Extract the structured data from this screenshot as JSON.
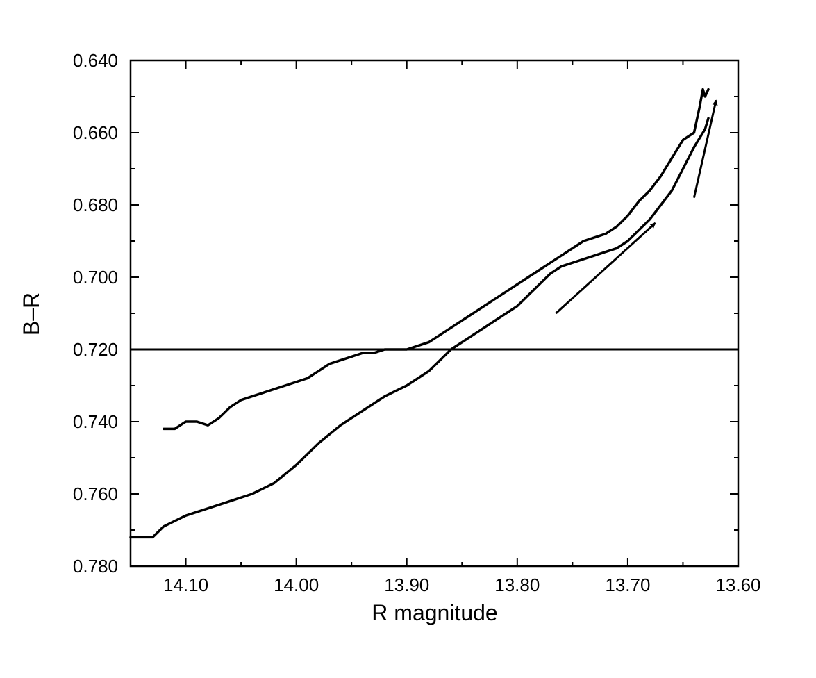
{
  "chart_data": {
    "type": "line",
    "title": "",
    "xlabel": "R magnitude",
    "ylabel": "B–R",
    "xlim": [
      14.15,
      13.6
    ],
    "ylim": [
      0.64,
      0.78
    ],
    "x_reversed": true,
    "y_reversed": true,
    "grid": false,
    "legend": "none",
    "x_ticks": [
      14.1,
      14.0,
      13.9,
      13.8,
      13.7,
      13.6
    ],
    "x_tick_labels": [
      "14.10",
      "14.00",
      "13.90",
      "13.80",
      "13.70",
      "13.60"
    ],
    "y_ticks": [
      0.64,
      0.66,
      0.68,
      0.7,
      0.72,
      0.74,
      0.76,
      0.78
    ],
    "y_tick_labels": [
      "0.640",
      "0.660",
      "0.680",
      "0.700",
      "0.720",
      "0.740",
      "0.760",
      "0.780"
    ],
    "series": [
      {
        "x": [
          14.12,
          14.11,
          14.1,
          14.09,
          14.08,
          14.07,
          14.06,
          14.05,
          14.04,
          14.03,
          14.02,
          14.01,
          14.0,
          13.99,
          13.98,
          13.97,
          13.96,
          13.95,
          13.94,
          13.93,
          13.92,
          13.91,
          13.9,
          13.89,
          13.88,
          13.87,
          13.86,
          13.85,
          13.84,
          13.83,
          13.82,
          13.81,
          13.8,
          13.79,
          13.78,
          13.77,
          13.76,
          13.75,
          13.74,
          13.73,
          13.72,
          13.71,
          13.7,
          13.69,
          13.68,
          13.67,
          13.66,
          13.65,
          13.64,
          13.635,
          13.632,
          13.63,
          13.627
        ],
        "y": [
          0.742,
          0.742,
          0.74,
          0.74,
          0.741,
          0.739,
          0.736,
          0.734,
          0.733,
          0.732,
          0.731,
          0.73,
          0.729,
          0.728,
          0.726,
          0.724,
          0.723,
          0.722,
          0.721,
          0.721,
          0.72,
          0.72,
          0.72,
          0.719,
          0.718,
          0.716,
          0.714,
          0.712,
          0.71,
          0.708,
          0.706,
          0.704,
          0.702,
          0.7,
          0.698,
          0.696,
          0.694,
          0.692,
          0.69,
          0.689,
          0.688,
          0.686,
          0.683,
          0.679,
          0.676,
          0.672,
          0.667,
          0.662,
          0.66,
          0.653,
          0.648,
          0.65,
          0.648
        ]
      },
      {
        "x": [
          14.15,
          14.13,
          14.12,
          14.1,
          14.08,
          14.06,
          14.04,
          14.02,
          14.0,
          13.98,
          13.96,
          13.94,
          13.92,
          13.9,
          13.89,
          13.88,
          13.87,
          13.86,
          13.85,
          13.84,
          13.83,
          13.82,
          13.81,
          13.8,
          13.79,
          13.78,
          13.77,
          13.76,
          13.75,
          13.74,
          13.73,
          13.72,
          13.71,
          13.7,
          13.69,
          13.68,
          13.67,
          13.66,
          13.65,
          13.64,
          13.63,
          13.627
        ],
        "y": [
          0.772,
          0.772,
          0.769,
          0.766,
          0.764,
          0.762,
          0.76,
          0.757,
          0.752,
          0.746,
          0.741,
          0.737,
          0.733,
          0.73,
          0.728,
          0.726,
          0.723,
          0.72,
          0.718,
          0.716,
          0.714,
          0.712,
          0.71,
          0.708,
          0.705,
          0.702,
          0.699,
          0.697,
          0.696,
          0.695,
          0.694,
          0.693,
          0.692,
          0.69,
          0.687,
          0.684,
          0.68,
          0.676,
          0.67,
          0.664,
          0.659,
          0.656
        ]
      }
    ],
    "reference_lines": [
      {
        "orientation": "horizontal",
        "y": 0.72
      }
    ],
    "annotations": [
      {
        "type": "arrow",
        "from": [
          13.765,
          0.71
        ],
        "to": [
          13.675,
          0.685
        ]
      },
      {
        "type": "arrow",
        "from": [
          13.64,
          0.678
        ],
        "to": [
          13.62,
          0.651
        ]
      }
    ]
  }
}
